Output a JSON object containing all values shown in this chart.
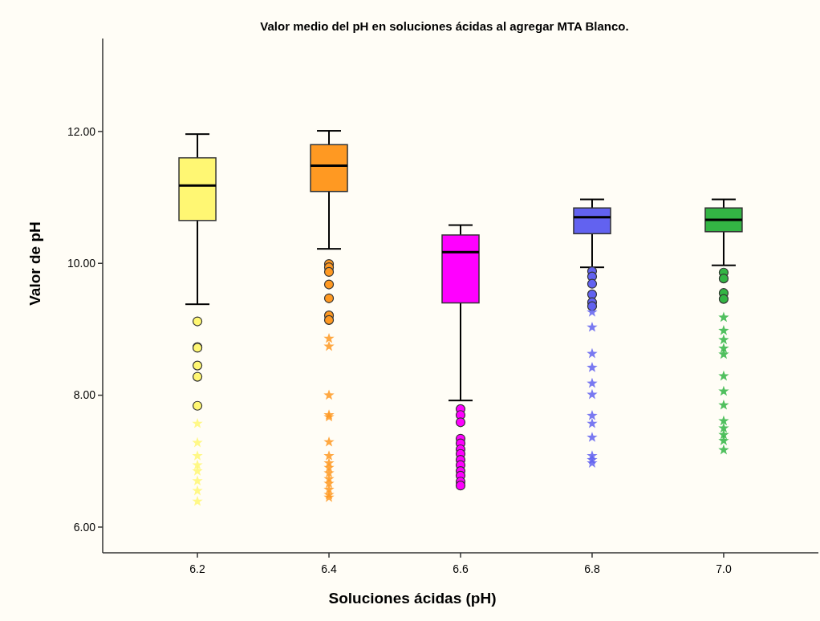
{
  "chart_data": {
    "type": "box",
    "title": "Valor medio del pH en soluciones ácidas al agregar MTA Blanco.",
    "xlabel": "Soluciones ácidas (pH)",
    "ylabel": "Valor de pH",
    "categories": [
      "6.2",
      "6.4",
      "6.6",
      "6.8",
      "7.0"
    ],
    "colors": [
      "#fff773",
      "#ff9922",
      "#ff00ff",
      "#6262f0",
      "#33b544"
    ],
    "boxes": [
      {
        "low": 9.38,
        "q1": 10.65,
        "median": 11.18,
        "q3": 11.6,
        "high": 11.96,
        "outliers": [
          9.12,
          8.73,
          8.72,
          8.45,
          8.28,
          7.84,
          7.57,
          7.28,
          7.08,
          6.94,
          6.85,
          6.7,
          6.55,
          6.39
        ]
      },
      {
        "low": 10.22,
        "q1": 11.09,
        "median": 11.48,
        "q3": 11.8,
        "high": 12.01,
        "outliers": [
          9.99,
          9.94,
          9.87,
          9.68,
          9.47,
          9.21,
          9.14,
          8.86,
          8.74,
          8.0,
          7.7,
          7.67,
          7.29,
          7.08,
          6.97,
          6.9,
          6.82,
          6.73,
          6.66,
          6.57,
          6.49,
          6.45
        ]
      },
      {
        "low": 7.92,
        "q1": 9.4,
        "median": 10.17,
        "q3": 10.43,
        "high": 10.58,
        "outliers": [
          7.79,
          7.7,
          7.59,
          7.34,
          7.27,
          7.18,
          7.11,
          7.02,
          6.94,
          6.85,
          6.78,
          6.69,
          6.63
        ]
      },
      {
        "low": 9.94,
        "q1": 10.45,
        "median": 10.7,
        "q3": 10.84,
        "high": 10.97,
        "outliers": [
          9.88,
          9.8,
          9.69,
          9.53,
          9.41,
          9.35,
          9.26,
          9.03,
          8.63,
          8.42,
          8.18,
          8.01,
          7.69,
          7.57,
          7.36,
          7.08,
          7.02,
          6.97
        ]
      },
      {
        "low": 9.97,
        "q1": 10.48,
        "median": 10.66,
        "q3": 10.84,
        "high": 10.97,
        "outliers": [
          9.86,
          9.77,
          9.55,
          9.46,
          9.18,
          8.98,
          8.84,
          8.71,
          8.62,
          8.29,
          8.06,
          7.85,
          7.61,
          7.5,
          7.4,
          7.31,
          7.17
        ]
      }
    ],
    "ylim": [
      5.61,
      13.41
    ],
    "yticks": [
      {
        "value": 6,
        "label": "6.00"
      },
      {
        "value": 8,
        "label": "8.00"
      },
      {
        "value": 10,
        "label": "10.00"
      },
      {
        "value": 12,
        "label": "12.00"
      }
    ],
    "grid": false
  }
}
